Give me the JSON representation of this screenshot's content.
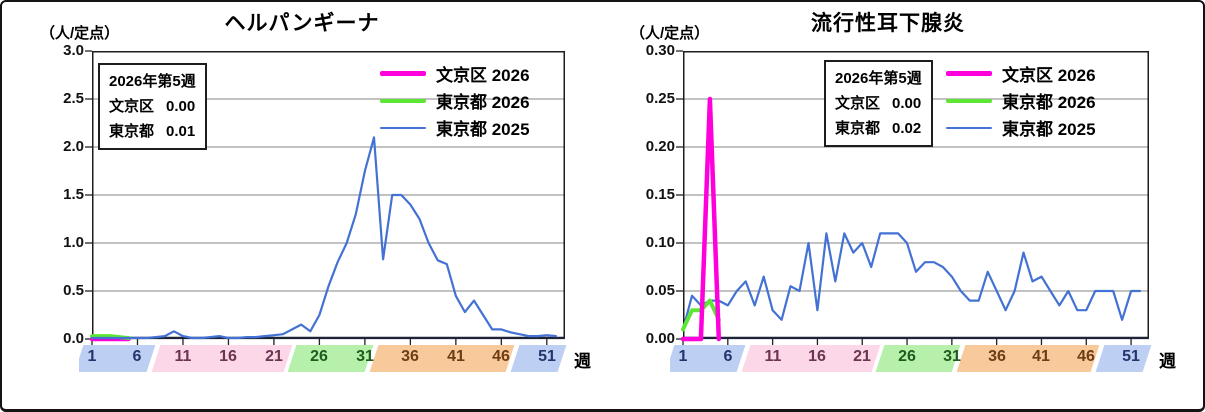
{
  "page": {
    "background": "#ffffff",
    "frame_border_color": "#141414"
  },
  "chart_data": [
    {
      "type": "line",
      "title": "ヘルパンギーナ",
      "unit_label": "（人/定点）",
      "xlabel": "週",
      "ylim": [
        0,
        3.0
      ],
      "grid": true,
      "legend_position": "top-right-inside",
      "weeks_total": 52,
      "xtick_weeks": [
        1,
        6,
        11,
        16,
        21,
        26,
        31,
        36,
        41,
        46,
        51
      ],
      "y_ticks": [
        {
          "label": "3.0",
          "value": 3.0
        },
        {
          "label": "2.5",
          "value": 2.5
        },
        {
          "label": "2.0",
          "value": 2.0
        },
        {
          "label": "1.5",
          "value": 1.5
        },
        {
          "label": "1.0",
          "value": 1.0
        },
        {
          "label": "0.5",
          "value": 0.5
        },
        {
          "label": "0.0",
          "value": 0.0
        }
      ],
      "info_box": {
        "title": "2026年第5週",
        "rows": [
          {
            "name": "文京区",
            "value": "0.00"
          },
          {
            "name": "東京都",
            "value": "0.01"
          }
        ]
      },
      "series": [
        {
          "name": "文京区 2026",
          "color": "#ff00dd",
          "line_width": 4.5,
          "start_week": 1,
          "values": [
            0,
            0,
            0,
            0,
            0
          ]
        },
        {
          "name": "東京都 2026",
          "color": "#5ee636",
          "line_width": 4,
          "start_week": 1,
          "values": [
            0.03,
            0.03,
            0.03,
            0.02,
            0.01
          ]
        },
        {
          "name": "東京都 2025",
          "color": "#4472d4",
          "line_width": 2.2,
          "start_week": 1,
          "values": [
            0.01,
            0.01,
            0.01,
            0.01,
            0.01,
            0.01,
            0.01,
            0.02,
            0.03,
            0.08,
            0.03,
            0.01,
            0.01,
            0.02,
            0.03,
            0.01,
            0.01,
            0.02,
            0.02,
            0.03,
            0.04,
            0.05,
            0.1,
            0.15,
            0.08,
            0.25,
            0.55,
            0.8,
            1.0,
            1.3,
            1.75,
            2.1,
            0.83,
            1.5,
            1.5,
            1.4,
            1.25,
            1.0,
            0.82,
            0.78,
            0.45,
            0.28,
            0.4,
            0.25,
            0.1,
            0.1,
            0.07,
            0.05,
            0.03,
            0.03,
            0.04,
            0.03
          ]
        }
      ],
      "season_bands": [
        {
          "from_week": 1,
          "to_week": 7.5,
          "color": "#bdcff2",
          "label_color": "#24356e"
        },
        {
          "from_week": 8,
          "to_week": 22.5,
          "color": "#fcd7e8",
          "label_color": "#6b3450"
        },
        {
          "from_week": 23,
          "to_week": 31.5,
          "color": "#b6f0ab",
          "label_color": "#1e5c1e"
        },
        {
          "from_week": 32,
          "to_week": 47,
          "color": "#f7c99b",
          "label_color": "#6e3d14"
        },
        {
          "from_week": 47.5,
          "to_week": 52.7,
          "color": "#bdcff2",
          "label_color": "#24356e"
        }
      ]
    },
    {
      "type": "line",
      "title": "流行性耳下腺炎",
      "unit_label": "（人/定点）",
      "xlabel": "週",
      "ylim": [
        0,
        0.3
      ],
      "grid": true,
      "legend_position": "top-right-inside",
      "weeks_total": 52,
      "xtick_weeks": [
        1,
        6,
        11,
        16,
        21,
        26,
        31,
        36,
        41,
        46,
        51
      ],
      "y_ticks": [
        {
          "label": "0.30",
          "value": 0.3
        },
        {
          "label": "0.25",
          "value": 0.25
        },
        {
          "label": "0.20",
          "value": 0.2
        },
        {
          "label": "0.15",
          "value": 0.15
        },
        {
          "label": "0.10",
          "value": 0.1
        },
        {
          "label": "0.05",
          "value": 0.05
        },
        {
          "label": "0.00",
          "value": 0.0
        }
      ],
      "info_box": {
        "title": "2026年第5週",
        "rows": [
          {
            "name": "文京区",
            "value": "0.00"
          },
          {
            "name": "東京都",
            "value": "0.02"
          }
        ]
      },
      "series": [
        {
          "name": "文京区 2026",
          "color": "#ff00dd",
          "line_width": 4.5,
          "start_week": 1,
          "values": [
            0,
            0,
            0,
            0.25,
            0
          ]
        },
        {
          "name": "東京都 2026",
          "color": "#5ee636",
          "line_width": 4,
          "start_week": 1,
          "values": [
            0.01,
            0.03,
            0.03,
            0.04,
            0.02
          ]
        },
        {
          "name": "東京都 2025",
          "color": "#4472d4",
          "line_width": 2.2,
          "start_week": 1,
          "values": [
            0.01,
            0.045,
            0.035,
            0.04,
            0.04,
            0.035,
            0.05,
            0.06,
            0.035,
            0.065,
            0.03,
            0.02,
            0.055,
            0.05,
            0.1,
            0.03,
            0.11,
            0.06,
            0.11,
            0.09,
            0.1,
            0.075,
            0.11,
            0.11,
            0.11,
            0.1,
            0.07,
            0.08,
            0.08,
            0.075,
            0.065,
            0.05,
            0.04,
            0.04,
            0.07,
            0.05,
            0.03,
            0.05,
            0.09,
            0.06,
            0.065,
            0.05,
            0.035,
            0.05,
            0.03,
            0.03,
            0.05,
            0.05,
            0.05,
            0.02,
            0.05,
            0.05
          ]
        }
      ],
      "season_bands": [
        {
          "from_week": 1,
          "to_week": 7.5,
          "color": "#bdcff2",
          "label_color": "#24356e"
        },
        {
          "from_week": 8,
          "to_week": 22.5,
          "color": "#fcd7e8",
          "label_color": "#6b3450"
        },
        {
          "from_week": 23,
          "to_week": 31.5,
          "color": "#b6f0ab",
          "label_color": "#1e5c1e"
        },
        {
          "from_week": 32,
          "to_week": 47,
          "color": "#f7c99b",
          "label_color": "#6e3d14"
        },
        {
          "from_week": 47.5,
          "to_week": 52.7,
          "color": "#bdcff2",
          "label_color": "#24356e"
        }
      ]
    }
  ]
}
